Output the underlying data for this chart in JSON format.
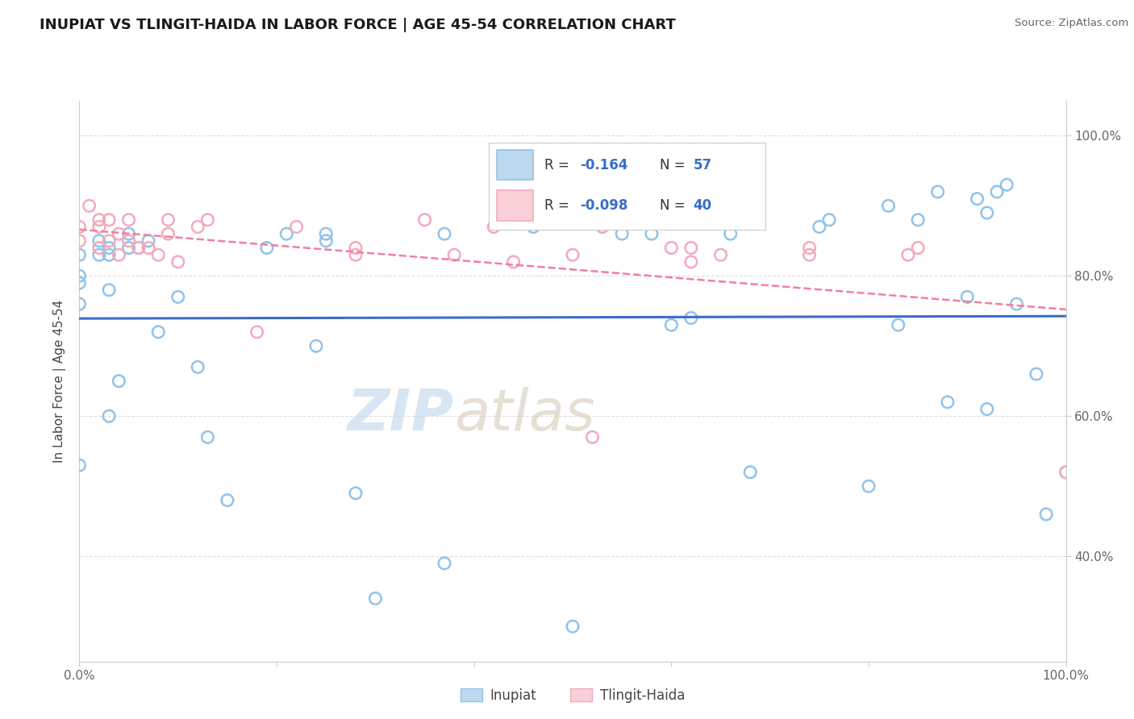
{
  "title": "INUPIAT VS TLINGIT-HAIDA IN LABOR FORCE | AGE 45-54 CORRELATION CHART",
  "source": "Source: ZipAtlas.com",
  "ylabel": "In Labor Force | Age 45-54",
  "xlim": [
    0.0,
    1.0
  ],
  "ylim": [
    0.25,
    1.05
  ],
  "x_ticks": [
    0.0,
    0.2,
    0.4,
    0.6,
    0.8,
    1.0
  ],
  "x_tick_labels": [
    "0.0%",
    "",
    "",
    "",
    "",
    "100.0%"
  ],
  "y_ticks": [
    0.4,
    0.6,
    0.8,
    1.0
  ],
  "y_tick_labels": [
    "40.0%",
    "60.0%",
    "80.0%",
    "100.0%"
  ],
  "legend_r_inupiat": "-0.164",
  "legend_n_inupiat": "57",
  "legend_r_tlingit": "-0.098",
  "legend_n_tlingit": "40",
  "inupiat_color": "#92C3E8",
  "tlingit_color": "#F4AABB",
  "inupiat_line_color": "#3A6CC8",
  "tlingit_line_color": "#F080A0",
  "inupiat_fill_color": "#BDD9F0",
  "tlingit_fill_color": "#FAD0D8",
  "watermark_zip": "ZIP",
  "watermark_atlas": "atlas",
  "background_color": "#FFFFFF",
  "grid_color": "#DDDDDD",
  "inupiat_x": [
    0.0,
    0.0,
    0.0,
    0.0,
    0.0,
    0.02,
    0.02,
    0.03,
    0.03,
    0.03,
    0.03,
    0.04,
    0.05,
    0.05,
    0.06,
    0.07,
    0.08,
    0.1,
    0.12,
    0.13,
    0.15,
    0.19,
    0.21,
    0.24,
    0.25,
    0.25,
    0.28,
    0.3,
    0.37,
    0.37,
    0.46,
    0.5,
    0.53,
    0.55,
    0.58,
    0.6,
    0.62,
    0.66,
    0.68,
    0.75,
    0.76,
    0.8,
    0.82,
    0.83,
    0.85,
    0.87,
    0.88,
    0.9,
    0.91,
    0.92,
    0.92,
    0.93,
    0.94,
    0.95,
    0.97,
    0.98,
    1.0
  ],
  "inupiat_y": [
    0.83,
    0.8,
    0.79,
    0.76,
    0.53,
    0.85,
    0.83,
    0.84,
    0.83,
    0.78,
    0.6,
    0.65,
    0.86,
    0.84,
    0.84,
    0.85,
    0.72,
    0.77,
    0.67,
    0.57,
    0.48,
    0.84,
    0.86,
    0.7,
    0.86,
    0.85,
    0.49,
    0.34,
    0.39,
    0.86,
    0.87,
    0.3,
    0.87,
    0.86,
    0.86,
    0.73,
    0.74,
    0.86,
    0.52,
    0.87,
    0.88,
    0.5,
    0.9,
    0.73,
    0.88,
    0.92,
    0.62,
    0.77,
    0.91,
    0.89,
    0.61,
    0.92,
    0.93,
    0.76,
    0.66,
    0.46,
    0.52
  ],
  "tlingit_x": [
    0.0,
    0.0,
    0.01,
    0.02,
    0.02,
    0.02,
    0.03,
    0.03,
    0.04,
    0.04,
    0.05,
    0.05,
    0.06,
    0.07,
    0.08,
    0.09,
    0.09,
    0.1,
    0.12,
    0.13,
    0.18,
    0.22,
    0.28,
    0.28,
    0.35,
    0.38,
    0.42,
    0.44,
    0.5,
    0.52,
    0.53,
    0.6,
    0.62,
    0.62,
    0.65,
    0.74,
    0.74,
    0.84,
    0.85,
    1.0
  ],
  "tlingit_y": [
    0.87,
    0.85,
    0.9,
    0.88,
    0.87,
    0.84,
    0.88,
    0.85,
    0.86,
    0.83,
    0.88,
    0.85,
    0.84,
    0.84,
    0.83,
    0.88,
    0.86,
    0.82,
    0.87,
    0.88,
    0.72,
    0.87,
    0.83,
    0.84,
    0.88,
    0.83,
    0.87,
    0.82,
    0.83,
    0.57,
    0.87,
    0.84,
    0.84,
    0.82,
    0.83,
    0.83,
    0.84,
    0.83,
    0.84,
    0.52
  ]
}
